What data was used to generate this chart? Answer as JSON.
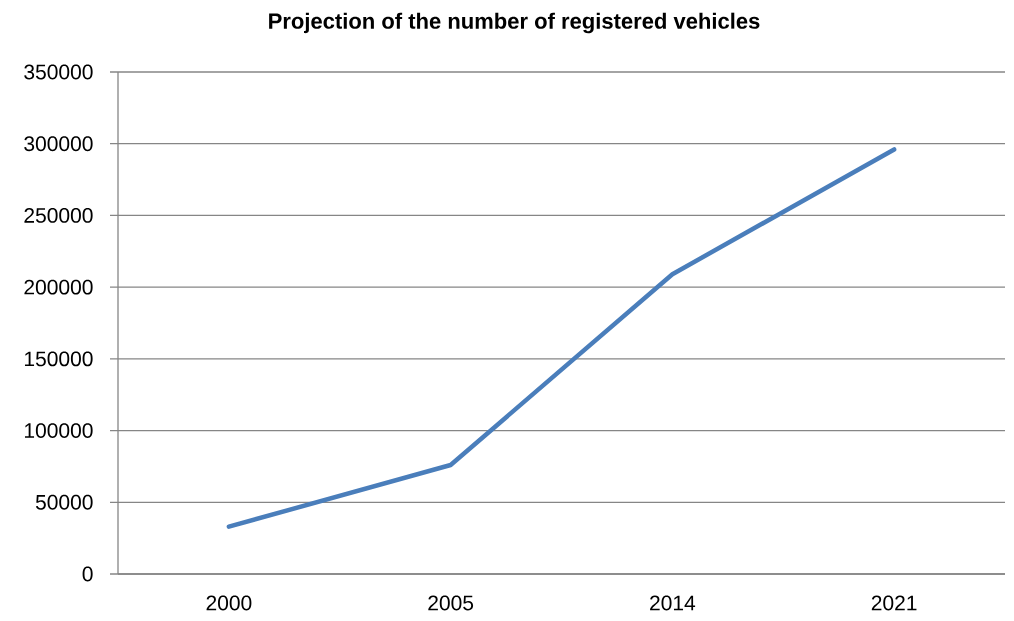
{
  "chart_data": {
    "type": "line",
    "title": "Projection of the number of registered vehicles",
    "categories": [
      "2000",
      "2005",
      "2014",
      "2021"
    ],
    "series": [
      {
        "color": "#4a7ebb",
        "values": [
          33000,
          76000,
          209000,
          296000
        ]
      }
    ],
    "ylim": [
      0,
      350000
    ],
    "yticks": [
      0,
      50000,
      100000,
      150000,
      200000,
      250000,
      300000,
      350000
    ],
    "grid": "y",
    "line_style": "solid"
  }
}
